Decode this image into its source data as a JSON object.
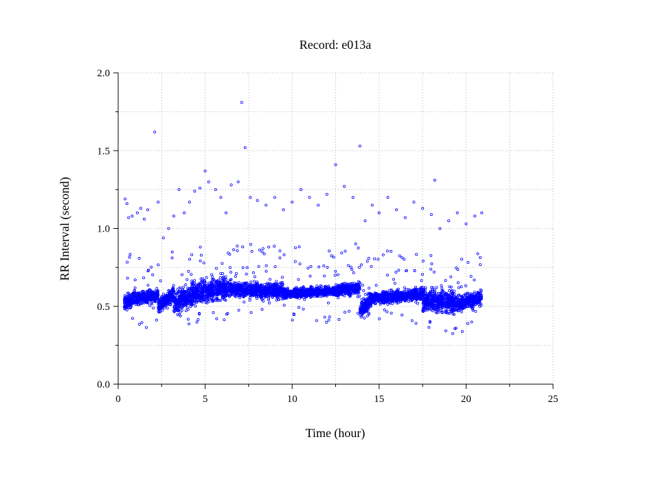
{
  "chart_data": {
    "type": "scatter",
    "title": "Record:  e013a",
    "xlabel": "Time (hour)",
    "ylabel": "RR Interval (second)",
    "xlim": [
      0,
      25
    ],
    "ylim": [
      0,
      2.0
    ],
    "x_ticks": [
      "0",
      "5",
      "10",
      "15",
      "20",
      "25"
    ],
    "y_ticks": [
      "0.0",
      "0.5",
      "1.0",
      "1.5",
      "2.0"
    ],
    "grid": true,
    "marker": "open-circle",
    "color": "#0000ff",
    "series": [
      {
        "description_note": null,
        "segments": [
          {
            "x": [
              0.35,
              1.0
            ],
            "y": [
              0.52,
              0.56
            ],
            "spread": 0.05
          },
          {
            "x": [
              1.0,
              2.3
            ],
            "y": [
              0.55,
              0.57
            ],
            "spread": 0.04
          },
          {
            "x": [
              2.3,
              3.2
            ],
            "y": [
              0.5,
              0.58
            ],
            "spread": 0.05
          },
          {
            "x": [
              3.2,
              4.2
            ],
            "y": [
              0.52,
              0.58
            ],
            "spread": 0.08
          },
          {
            "x": [
              4.2,
              6.5
            ],
            "y": [
              0.58,
              0.62
            ],
            "spread": 0.07
          },
          {
            "x": [
              6.5,
              9.5
            ],
            "y": [
              0.61,
              0.6
            ],
            "spread": 0.05
          },
          {
            "x": [
              9.5,
              12.5
            ],
            "y": [
              0.58,
              0.6
            ],
            "spread": 0.03
          },
          {
            "x": [
              12.5,
              13.9
            ],
            "y": [
              0.6,
              0.62
            ],
            "spread": 0.04
          },
          {
            "x": [
              13.9,
              14.6
            ],
            "y": [
              0.48,
              0.55
            ],
            "spread": 0.06
          },
          {
            "x": [
              14.6,
              17.5
            ],
            "y": [
              0.55,
              0.58
            ],
            "spread": 0.04
          },
          {
            "x": [
              17.5,
              19.6
            ],
            "y": [
              0.54,
              0.52
            ],
            "spread": 0.07
          },
          {
            "x": [
              19.6,
              20.9
            ],
            "y": [
              0.52,
              0.56
            ],
            "spread": 0.05
          }
        ],
        "outliers": [
          {
            "x": 0.4,
            "y": 1.19
          },
          {
            "x": 0.5,
            "y": 1.16
          },
          {
            "x": 0.6,
            "y": 1.07
          },
          {
            "x": 0.8,
            "y": 1.08
          },
          {
            "x": 1.1,
            "y": 1.1
          },
          {
            "x": 1.3,
            "y": 1.13
          },
          {
            "x": 1.5,
            "y": 1.06
          },
          {
            "x": 1.7,
            "y": 1.12
          },
          {
            "x": 2.1,
            "y": 1.62
          },
          {
            "x": 2.3,
            "y": 1.17
          },
          {
            "x": 2.6,
            "y": 0.94
          },
          {
            "x": 2.9,
            "y": 1.0
          },
          {
            "x": 3.2,
            "y": 1.08
          },
          {
            "x": 3.5,
            "y": 1.25
          },
          {
            "x": 3.8,
            "y": 1.1
          },
          {
            "x": 4.1,
            "y": 1.17
          },
          {
            "x": 4.4,
            "y": 1.24
          },
          {
            "x": 4.7,
            "y": 1.26
          },
          {
            "x": 5.0,
            "y": 1.37
          },
          {
            "x": 5.2,
            "y": 1.3
          },
          {
            "x": 5.6,
            "y": 1.25
          },
          {
            "x": 5.9,
            "y": 1.2
          },
          {
            "x": 6.2,
            "y": 1.1
          },
          {
            "x": 6.5,
            "y": 1.28
          },
          {
            "x": 6.9,
            "y": 1.3
          },
          {
            "x": 7.1,
            "y": 1.81
          },
          {
            "x": 7.3,
            "y": 1.52
          },
          {
            "x": 7.6,
            "y": 1.2
          },
          {
            "x": 8.0,
            "y": 1.18
          },
          {
            "x": 8.5,
            "y": 1.15
          },
          {
            "x": 9.0,
            "y": 1.2
          },
          {
            "x": 9.5,
            "y": 1.12
          },
          {
            "x": 10.0,
            "y": 1.17
          },
          {
            "x": 10.5,
            "y": 1.25
          },
          {
            "x": 11.0,
            "y": 1.2
          },
          {
            "x": 11.5,
            "y": 1.15
          },
          {
            "x": 12.0,
            "y": 1.22
          },
          {
            "x": 12.5,
            "y": 1.41
          },
          {
            "x": 13.0,
            "y": 1.27
          },
          {
            "x": 13.5,
            "y": 1.2
          },
          {
            "x": 13.9,
            "y": 1.53
          },
          {
            "x": 14.2,
            "y": 1.05
          },
          {
            "x": 14.6,
            "y": 1.15
          },
          {
            "x": 15.0,
            "y": 1.1
          },
          {
            "x": 15.5,
            "y": 1.2
          },
          {
            "x": 16.0,
            "y": 1.12
          },
          {
            "x": 16.5,
            "y": 1.07
          },
          {
            "x": 17.0,
            "y": 1.17
          },
          {
            "x": 17.5,
            "y": 1.13
          },
          {
            "x": 18.0,
            "y": 1.09
          },
          {
            "x": 18.2,
            "y": 1.31
          },
          {
            "x": 18.5,
            "y": 1.0
          },
          {
            "x": 19.0,
            "y": 1.05
          },
          {
            "x": 19.5,
            "y": 1.1
          },
          {
            "x": 20.0,
            "y": 1.03
          },
          {
            "x": 20.5,
            "y": 1.08
          },
          {
            "x": 20.9,
            "y": 1.1
          }
        ]
      }
    ]
  }
}
